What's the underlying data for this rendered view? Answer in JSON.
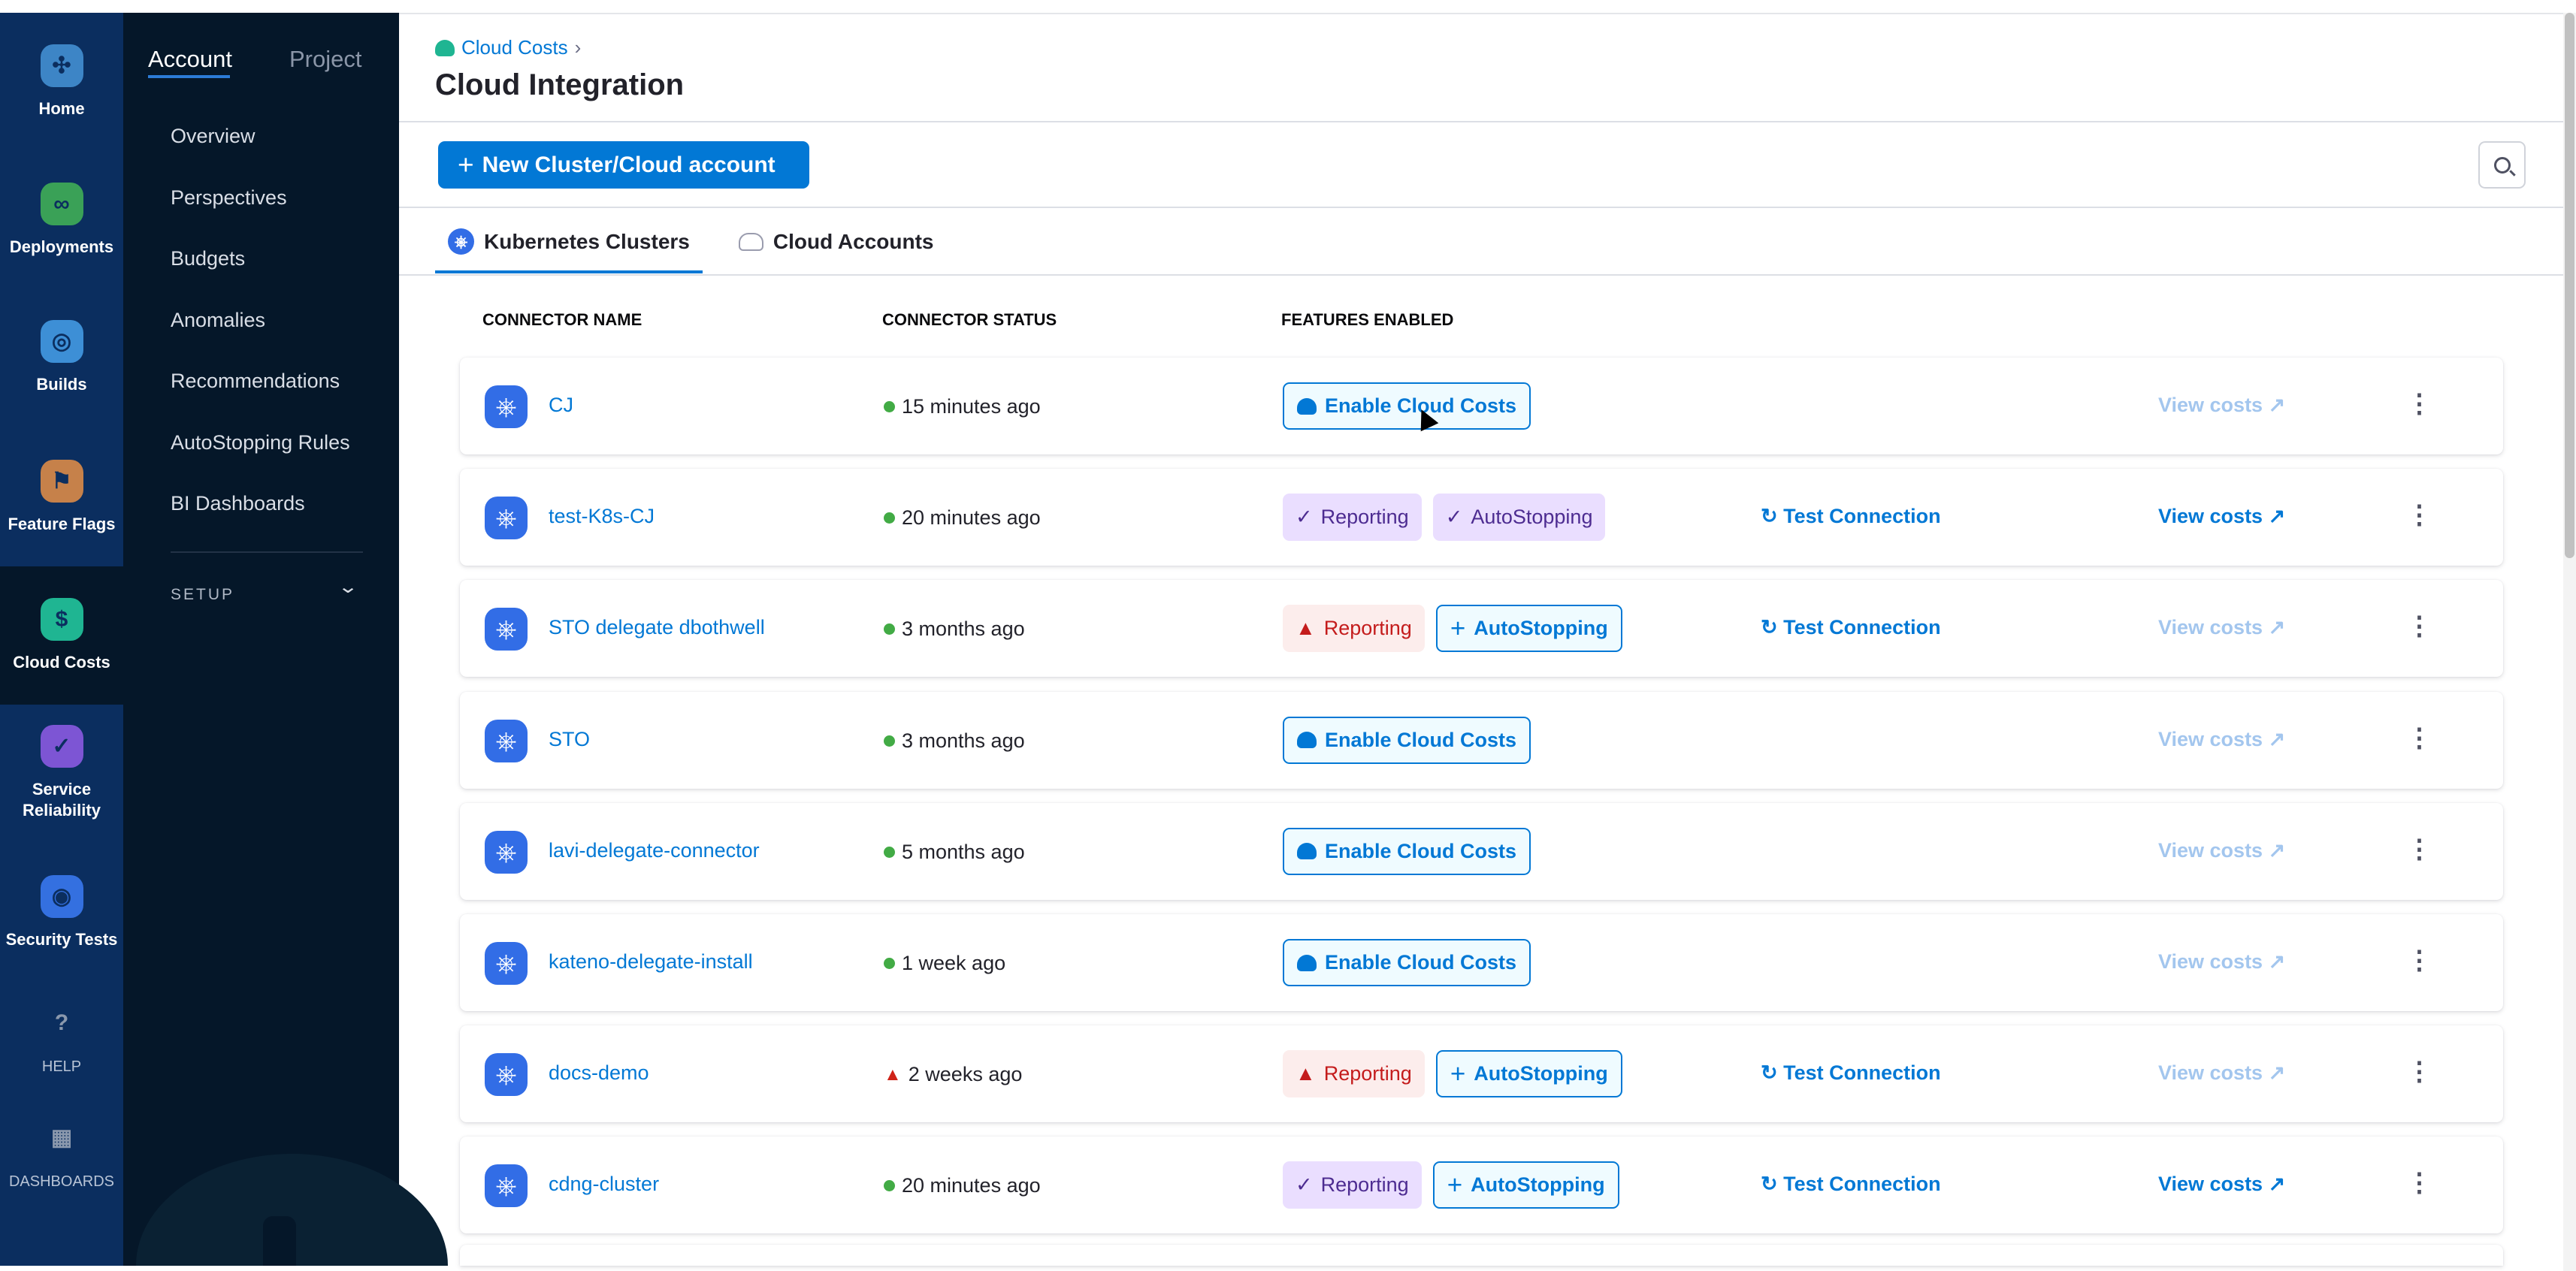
{
  "rail": [
    {
      "label": "Home",
      "icon": "harness-home-icon",
      "color": "#3d85c6"
    },
    {
      "label": "Deployments",
      "icon": "deployments-icon",
      "color": "#3aa157"
    },
    {
      "label": "Builds",
      "icon": "builds-icon",
      "color": "#3d8fd6"
    },
    {
      "label": "Feature Flags",
      "icon": "feature-flags-icon",
      "color": "#c6814a"
    },
    {
      "label": "Cloud Costs",
      "icon": "cloud-costs-icon",
      "color": "#1fb592",
      "active": true
    },
    {
      "label": "Service Reliability",
      "icon": "service-reliability-icon",
      "color": "#7d55d4"
    },
    {
      "label": "Security Tests",
      "icon": "security-tests-icon",
      "color": "#3470e0"
    },
    {
      "label": "HELP",
      "icon": "help-icon",
      "color": "#8a98ad"
    },
    {
      "label": "DASHBOARDS",
      "icon": "dashboards-icon",
      "color": "#8a98ad"
    }
  ],
  "nav2": {
    "tabs": [
      "Account",
      "Project"
    ],
    "items": [
      "Overview",
      "Perspectives",
      "Budgets",
      "Anomalies",
      "Recommendations",
      "AutoStopping Rules",
      "BI Dashboards"
    ],
    "setup": "SETUP"
  },
  "header": {
    "breadcrumb": "Cloud Costs",
    "title": "Cloud Integration"
  },
  "toolbar": {
    "new_button": "New Cluster/Cloud account"
  },
  "tabs": [
    "Kubernetes Clusters",
    "Cloud Accounts"
  ],
  "table": {
    "columns": [
      "CONNECTOR NAME",
      "CONNECTOR STATUS",
      "FEATURES ENABLED"
    ],
    "rows": [
      {
        "name": "CJ",
        "status": "15 minutes ago",
        "status_type": "ok",
        "features": [
          {
            "type": "btn",
            "label": "Enable Cloud Costs"
          }
        ],
        "test": "",
        "view": "View costs",
        "view_enabled": false
      },
      {
        "name": "test-K8s-CJ",
        "status": "20 minutes ago",
        "status_type": "ok",
        "features": [
          {
            "type": "ok",
            "label": "Reporting"
          },
          {
            "type": "ok",
            "label": "AutoStopping"
          }
        ],
        "test": "Test Connection",
        "view": "View costs",
        "view_enabled": true
      },
      {
        "name": "STO delegate dbothwell",
        "status": "3 months ago",
        "status_type": "ok",
        "features": [
          {
            "type": "err",
            "label": "Reporting"
          },
          {
            "type": "add",
            "label": "AutoStopping"
          }
        ],
        "test": "Test Connection",
        "view": "View costs",
        "view_enabled": false
      },
      {
        "name": "STO",
        "status": "3 months ago",
        "status_type": "ok",
        "features": [
          {
            "type": "btn",
            "label": "Enable Cloud Costs"
          }
        ],
        "test": "",
        "view": "View costs",
        "view_enabled": false
      },
      {
        "name": "lavi-delegate-connector",
        "status": "5 months ago",
        "status_type": "ok",
        "features": [
          {
            "type": "btn",
            "label": "Enable Cloud Costs"
          }
        ],
        "test": "",
        "view": "View costs",
        "view_enabled": false
      },
      {
        "name": "kateno-delegate-install",
        "status": "1 week ago",
        "status_type": "ok",
        "features": [
          {
            "type": "btn",
            "label": "Enable Cloud Costs"
          }
        ],
        "test": "",
        "view": "View costs",
        "view_enabled": false
      },
      {
        "name": "docs-demo",
        "status": "2 weeks ago",
        "status_type": "warn",
        "features": [
          {
            "type": "err",
            "label": "Reporting"
          },
          {
            "type": "add",
            "label": "AutoStopping"
          }
        ],
        "test": "Test Connection",
        "view": "View costs",
        "view_enabled": false
      },
      {
        "name": "cdng-cluster",
        "status": "20 minutes ago",
        "status_type": "ok",
        "features": [
          {
            "type": "ok",
            "label": "Reporting"
          },
          {
            "type": "add",
            "label": "AutoStopping"
          }
        ],
        "test": "Test Connection",
        "view": "View costs",
        "view_enabled": true
      }
    ]
  }
}
